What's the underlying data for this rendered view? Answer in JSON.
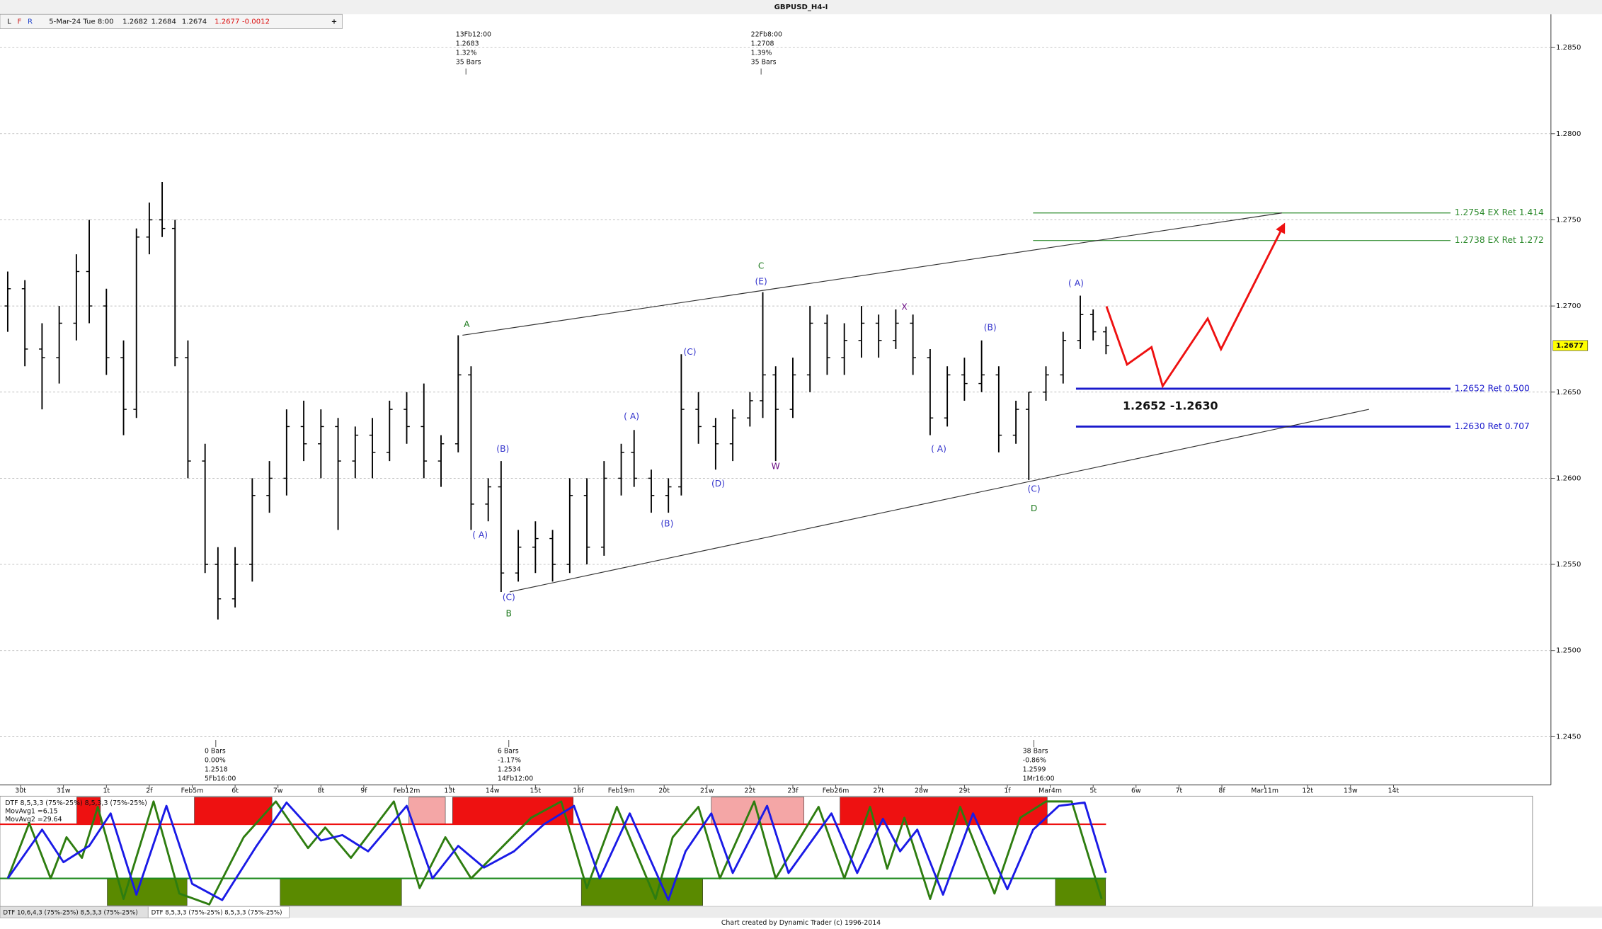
{
  "window": {
    "title": "GBPUSD_H4-I",
    "toolbar": {
      "buttons": [
        "L",
        "F",
        "R"
      ],
      "date": "5-Mar-24 Tue 8:00",
      "ohlc": [
        1.2682,
        1.2684,
        1.2674,
        1.2677
      ],
      "change": -0.0012,
      "add": "+"
    },
    "tabs": [
      "DTF 10,6,4,3 (75%-25%) 8,5,3,3 (75%-25%)",
      "DTF 8,5,3,3 (75%-25%) 8,5,3,3 (75%-25%)"
    ],
    "footer": "Chart created by Dynamic Trader  (c)  1996-2014"
  },
  "chart_data": [
    {
      "type": "ohlc",
      "xlim": [
        -0.48,
        35.67
      ],
      "ylim": [
        1.2422,
        1.2861
      ],
      "grid": true,
      "last_price": 1.2677,
      "yticks": [
        {
          "value": 1.245,
          "label": "1.2450"
        },
        {
          "value": 1.25,
          "label": "1.2500"
        },
        {
          "value": 1.255,
          "label": "1.2550"
        },
        {
          "value": 1.26,
          "label": "1.2600"
        },
        {
          "value": 1.265,
          "label": "1.2650"
        },
        {
          "value": 1.27,
          "label": "1.2700"
        },
        {
          "value": 1.275,
          "label": "1.2750"
        },
        {
          "value": 1.28,
          "label": "1.2800"
        },
        {
          "value": 1.285,
          "label": "1.2850"
        }
      ],
      "xticks": [
        {
          "value": 0,
          "label": "30t"
        },
        {
          "value": 1,
          "label": "31w"
        },
        {
          "value": 2,
          "label": "1t"
        },
        {
          "value": 3,
          "label": "2f"
        },
        {
          "value": 4,
          "label": "Feb5m"
        },
        {
          "value": 5,
          "label": "6t"
        },
        {
          "value": 6,
          "label": "7w"
        },
        {
          "value": 7,
          "label": "8t"
        },
        {
          "value": 8,
          "label": "9f"
        },
        {
          "value": 9,
          "label": "Feb12m"
        },
        {
          "value": 10,
          "label": "13t"
        },
        {
          "value": 11,
          "label": "14w"
        },
        {
          "value": 12,
          "label": "15t"
        },
        {
          "value": 13,
          "label": "16f"
        },
        {
          "value": 14,
          "label": "Feb19m"
        },
        {
          "value": 15,
          "label": "20t"
        },
        {
          "value": 16,
          "label": "21w"
        },
        {
          "value": 17,
          "label": "22t"
        },
        {
          "value": 18,
          "label": "23f"
        },
        {
          "value": 19,
          "label": "Feb26m"
        },
        {
          "value": 20,
          "label": "27t"
        },
        {
          "value": 21,
          "label": "28w"
        },
        {
          "value": 22,
          "label": "29t"
        },
        {
          "value": 23,
          "label": "1f"
        },
        {
          "value": 24,
          "label": "Mar4m"
        },
        {
          "value": 25,
          "label": "5t"
        },
        {
          "value": 26,
          "label": "6w"
        },
        {
          "value": 27,
          "label": "7t"
        },
        {
          "value": 28,
          "label": "8f"
        },
        {
          "value": 29,
          "label": "Mar11m"
        },
        {
          "value": 30,
          "label": "12t"
        },
        {
          "value": 31,
          "label": "13w"
        },
        {
          "value": 32,
          "label": "14t"
        }
      ],
      "x": [
        -0.3,
        0.1,
        0.5,
        0.9,
        1.3,
        1.6,
        2.0,
        2.4,
        2.7,
        3.0,
        3.3,
        3.6,
        3.9,
        4.3,
        4.6,
        5.0,
        5.4,
        5.8,
        6.2,
        6.6,
        7.0,
        7.4,
        7.8,
        8.2,
        8.6,
        9.0,
        9.4,
        9.8,
        10.2,
        10.5,
        10.9,
        11.2,
        11.6,
        12.0,
        12.4,
        12.8,
        13.2,
        13.6,
        14.0,
        14.3,
        14.7,
        15.1,
        15.4,
        15.8,
        16.2,
        16.6,
        17.0,
        17.3,
        17.6,
        18.0,
        18.4,
        18.8,
        19.2,
        19.6,
        20.0,
        20.4,
        20.8,
        21.2,
        21.6,
        22.0,
        22.4,
        22.8,
        23.2,
        23.5,
        23.9,
        24.3,
        24.7,
        25.0,
        25.3
      ],
      "open": [
        1.27,
        1.271,
        1.2675,
        1.267,
        1.269,
        1.272,
        1.27,
        1.267,
        1.264,
        1.274,
        1.275,
        1.2745,
        1.267,
        1.261,
        1.255,
        1.253,
        1.255,
        1.259,
        1.26,
        1.263,
        1.262,
        1.263,
        1.261,
        1.2625,
        1.2615,
        1.264,
        1.263,
        1.261,
        1.262,
        1.266,
        1.2585,
        1.2595,
        1.2545,
        1.256,
        1.2565,
        1.255,
        1.259,
        1.256,
        1.26,
        1.2615,
        1.26,
        1.259,
        1.2595,
        1.264,
        1.263,
        1.262,
        1.2635,
        1.2645,
        1.266,
        1.264,
        1.266,
        1.269,
        1.267,
        1.268,
        1.269,
        1.268,
        1.269,
        1.267,
        1.2635,
        1.266,
        1.2655,
        1.266,
        1.2625,
        1.264,
        1.265,
        1.266,
        1.268,
        1.2695,
        1.2685
      ],
      "high": [
        1.272,
        1.2715,
        1.269,
        1.27,
        1.273,
        1.275,
        1.271,
        1.268,
        1.2745,
        1.276,
        1.2772,
        1.275,
        1.268,
        1.262,
        1.256,
        1.256,
        1.26,
        1.261,
        1.264,
        1.2645,
        1.264,
        1.2635,
        1.263,
        1.2635,
        1.2645,
        1.265,
        1.2655,
        1.2625,
        1.2683,
        1.2665,
        1.26,
        1.261,
        1.257,
        1.2575,
        1.257,
        1.26,
        1.26,
        1.261,
        1.262,
        1.2628,
        1.2605,
        1.26,
        1.2672,
        1.265,
        1.2635,
        1.264,
        1.265,
        1.2708,
        1.2665,
        1.267,
        1.27,
        1.2695,
        1.269,
        1.27,
        1.2695,
        1.2698,
        1.2695,
        1.2675,
        1.2665,
        1.267,
        1.268,
        1.2665,
        1.2645,
        1.265,
        1.2665,
        1.2685,
        1.2706,
        1.2698,
        1.2688
      ],
      "low": [
        1.2685,
        1.2665,
        1.264,
        1.2655,
        1.268,
        1.269,
        1.266,
        1.2625,
        1.2635,
        1.273,
        1.274,
        1.2665,
        1.26,
        1.2545,
        1.2518,
        1.2525,
        1.254,
        1.258,
        1.259,
        1.261,
        1.26,
        1.257,
        1.26,
        1.26,
        1.261,
        1.262,
        1.26,
        1.2595,
        1.2615,
        1.257,
        1.2575,
        1.2534,
        1.254,
        1.2545,
        1.254,
        1.2545,
        1.255,
        1.2555,
        1.259,
        1.2595,
        1.258,
        1.258,
        1.259,
        1.262,
        1.2605,
        1.261,
        1.263,
        1.2635,
        1.261,
        1.2635,
        1.265,
        1.266,
        1.266,
        1.267,
        1.267,
        1.2675,
        1.266,
        1.2625,
        1.263,
        1.2645,
        1.265,
        1.2615,
        1.262,
        1.2599,
        1.2645,
        1.2655,
        1.2675,
        1.268,
        1.2672
      ],
      "close": [
        1.271,
        1.2675,
        1.267,
        1.269,
        1.272,
        1.27,
        1.267,
        1.264,
        1.274,
        1.275,
        1.2745,
        1.267,
        1.261,
        1.255,
        1.253,
        1.255,
        1.259,
        1.26,
        1.263,
        1.262,
        1.263,
        1.261,
        1.2625,
        1.2615,
        1.264,
        1.263,
        1.261,
        1.262,
        1.266,
        1.2585,
        1.2595,
        1.2545,
        1.256,
        1.2565,
        1.255,
        1.259,
        1.256,
        1.26,
        1.2615,
        1.26,
        1.259,
        1.2595,
        1.264,
        1.263,
        1.262,
        1.2635,
        1.2645,
        1.266,
        1.264,
        1.266,
        1.269,
        1.267,
        1.268,
        1.269,
        1.268,
        1.269,
        1.267,
        1.2635,
        1.266,
        1.2655,
        1.266,
        1.2625,
        1.264,
        1.265,
        1.266,
        1.268,
        1.2695,
        1.2685,
        1.2677
      ],
      "trendlines": [
        {
          "x": [
            10.3,
            29.4
          ],
          "y": [
            1.2683,
            1.2754
          ],
          "color": "#333333"
        },
        {
          "x": [
            11.4,
            31.43
          ],
          "y": [
            1.2534,
            1.264
          ],
          "color": "#333333"
        }
      ],
      "projection": {
        "x": [
          25.31,
          25.79,
          26.36,
          26.62,
          27.67,
          27.98,
          29.45
        ],
        "y": [
          1.26998,
          1.2666,
          1.26761,
          1.26535,
          1.26927,
          1.26749,
          1.27473
        ],
        "color": "#ee1111"
      },
      "levels": [
        {
          "value": 1.2754,
          "label": "1.2754 EX Ret 1.414",
          "color": "#2e8b2e",
          "start": 23.6,
          "end": 33.33
        },
        {
          "value": 1.2738,
          "label": "1.2738 EX Ret 1.272",
          "color": "#2e8b2e",
          "start": 23.6,
          "end": 33.33
        },
        {
          "value": 1.2652,
          "label": "1.2652 Ret 0.500",
          "color": "#1a1acc",
          "start": 24.6,
          "end": 33.33
        },
        {
          "value": 1.263,
          "label": "1.2630 Ret 0.707",
          "color": "#1a1acc",
          "start": 24.6,
          "end": 33.33
        }
      ],
      "annotations": [
        {
          "text": "A",
          "x": 10.4,
          "y": 1.26892,
          "color": "#1f7a1f"
        },
        {
          "text": "( A)",
          "x": 10.71,
          "y": 1.25669,
          "color": "#3333cc"
        },
        {
          "text": "(B)",
          "x": 11.24,
          "y": 1.26168,
          "color": "#3333cc"
        },
        {
          "text": "(C)",
          "x": 11.38,
          "y": 1.25307,
          "color": "#3333cc"
        },
        {
          "text": "B",
          "x": 11.38,
          "y": 1.25212,
          "color": "#1f7a1f"
        },
        {
          "text": "( A)",
          "x": 14.24,
          "y": 1.26358,
          "color": "#3333cc"
        },
        {
          "text": "(B)",
          "x": 15.07,
          "y": 1.25734,
          "color": "#3333cc"
        },
        {
          "text": "(C)",
          "x": 15.6,
          "y": 1.26731,
          "color": "#3333cc"
        },
        {
          "text": "(D)",
          "x": 16.26,
          "y": 1.25966,
          "color": "#3333cc"
        },
        {
          "text": "C",
          "x": 17.26,
          "y": 1.2723,
          "color": "#1f7a1f"
        },
        {
          "text": "(E)",
          "x": 17.26,
          "y": 1.27141,
          "color": "#3333cc"
        },
        {
          "text": "W",
          "x": 17.6,
          "y": 1.26067,
          "color": "#6a0d83"
        },
        {
          "text": "X",
          "x": 20.6,
          "y": 1.26993,
          "color": "#6a0d83"
        },
        {
          "text": "( A)",
          "x": 21.4,
          "y": 1.26168,
          "color": "#3333cc"
        },
        {
          "text": "(B)",
          "x": 22.6,
          "y": 1.26874,
          "color": "#3333cc"
        },
        {
          "text": "(C)",
          "x": 23.62,
          "y": 1.25936,
          "color": "#3333cc"
        },
        {
          "text": "D",
          "x": 23.62,
          "y": 1.25823,
          "color": "#1f7a1f"
        },
        {
          "text": "( A)",
          "x": 24.6,
          "y": 1.27129,
          "color": "#3333cc"
        },
        {
          "text": "1.2652 -1.2630",
          "x": 26.8,
          "y": 1.26417,
          "color": "#111111",
          "bold": true
        }
      ],
      "info_boxes_top": [
        {
          "x": 10.38,
          "lines": [
            "13Fb12:00",
            "1.2683",
            "1.32%",
            "35 Bars"
          ]
        },
        {
          "x": 17.26,
          "lines": [
            "22Fb8:00",
            "1.2708",
            "1.39%",
            "35 Bars"
          ]
        }
      ],
      "info_boxes_bottom": [
        {
          "x": 4.55,
          "lines": [
            "0 Bars",
            "0.00%",
            "1.2518",
            "5Fb16:00"
          ]
        },
        {
          "x": 11.38,
          "lines": [
            "6 Bars",
            "-1.17%",
            "1.2534",
            "14Fb12:00"
          ]
        },
        {
          "x": 23.62,
          "lines": [
            "38 Bars",
            "-0.86%",
            "1.2599",
            "1Mr16:00"
          ]
        }
      ]
    },
    {
      "type": "oscillator",
      "title": "DTF 8,5,3,3 (75%-25%) 8,5,3,3 (75%-25%)",
      "ylim": [
        0,
        100
      ],
      "xlim": [
        -0.48,
        35.67
      ],
      "upper": 75,
      "lower": 25,
      "threshold_end": 25.3,
      "zones": [
        {
          "start": 1.31,
          "end": 1.86,
          "side": "top",
          "color": "#ee1111"
        },
        {
          "start": 4.05,
          "end": 5.86,
          "side": "top",
          "color": "#ee1111"
        },
        {
          "start": 9.05,
          "end": 9.9,
          "side": "top",
          "color": "#f4a6a6"
        },
        {
          "start": 10.07,
          "end": 12.88,
          "side": "top",
          "color": "#ee1111"
        },
        {
          "start": 16.1,
          "end": 18.26,
          "side": "top",
          "color": "#f4a6a6"
        },
        {
          "start": 19.1,
          "end": 23.93,
          "side": "top",
          "color": "#ee1111"
        },
        {
          "start": 2.02,
          "end": 3.88,
          "side": "bottom",
          "color": "#5a8a00"
        },
        {
          "start": 6.05,
          "end": 8.88,
          "side": "bottom",
          "color": "#5a8a00"
        },
        {
          "start": 13.07,
          "end": 15.9,
          "side": "bottom",
          "color": "#5a8a00"
        },
        {
          "start": 24.12,
          "end": 25.29,
          "side": "bottom",
          "color": "#5a8a00"
        }
      ],
      "series": [
        {
          "name": "MovAvg1 =6.15",
          "color": "#2e7d10",
          "x": [
            -0.3,
            0.2,
            0.7,
            1.07,
            1.43,
            1.8,
            2.4,
            3.1,
            3.7,
            4.4,
            5.2,
            5.95,
            6.7,
            7.1,
            7.7,
            8.7,
            9.3,
            9.9,
            10.5,
            11.2,
            11.9,
            12.6,
            13.2,
            13.9,
            14.8,
            15.2,
            15.8,
            16.3,
            17.1,
            17.6,
            18.6,
            19.2,
            19.8,
            20.2,
            20.6,
            21.2,
            21.9,
            22.7,
            23.3,
            23.9,
            24.5,
            25.2
          ],
          "values": [
            25,
            76,
            25,
            63,
            44,
            91,
            6,
            96,
            11,
            1,
            63,
            96,
            53,
            72,
            44,
            96,
            16,
            63,
            25,
            53,
            81,
            96,
            16,
            91,
            6,
            63,
            91,
            25,
            96,
            25,
            91,
            25,
            91,
            34,
            81,
            6,
            91,
            11,
            81,
            96,
            96,
            6
          ]
        },
        {
          "name": "MovAvg2 =29.64",
          "color": "#1a1ae6",
          "x": [
            -0.3,
            0.5,
            1.0,
            1.6,
            2.1,
            2.7,
            3.4,
            4.0,
            4.7,
            5.5,
            6.2,
            7.0,
            7.5,
            8.1,
            9.0,
            9.6,
            10.2,
            10.8,
            11.5,
            12.2,
            12.9,
            13.5,
            14.2,
            15.1,
            15.5,
            16.1,
            16.6,
            17.4,
            17.9,
            18.9,
            19.5,
            20.1,
            20.5,
            20.9,
            21.5,
            22.2,
            23.0,
            23.6,
            24.2,
            24.8,
            25.3
          ],
          "values": [
            25,
            70,
            40,
            55,
            85,
            10,
            92,
            20,
            5,
            55,
            95,
            60,
            65,
            50,
            92,
            25,
            55,
            35,
            50,
            75,
            92,
            25,
            85,
            5,
            50,
            85,
            30,
            92,
            30,
            85,
            30,
            80,
            50,
            70,
            10,
            85,
            15,
            70,
            92,
            95,
            30
          ]
        }
      ]
    }
  ]
}
